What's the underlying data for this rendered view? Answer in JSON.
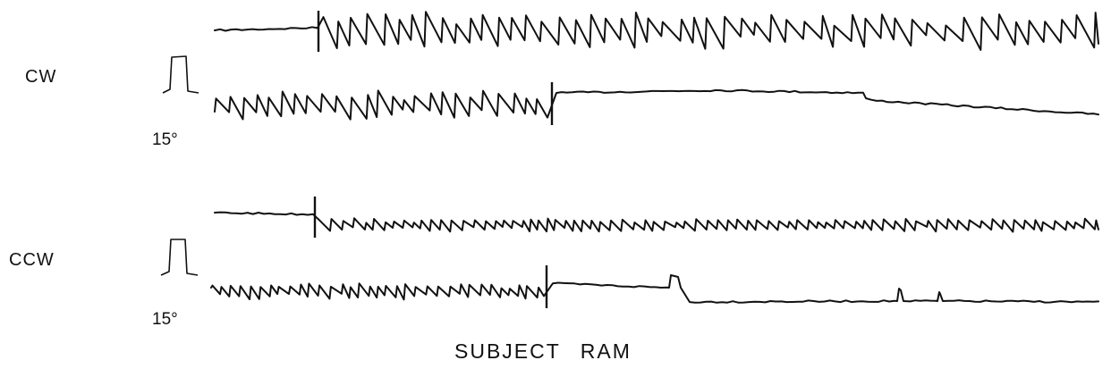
{
  "labels": {
    "cw": "CW",
    "ccw": "CCW",
    "calibration_1": "15°",
    "calibration_2": "15°",
    "caption": "SUBJECT RAM"
  },
  "colors": {
    "ink": "#111111",
    "background": "#ffffff"
  }
}
